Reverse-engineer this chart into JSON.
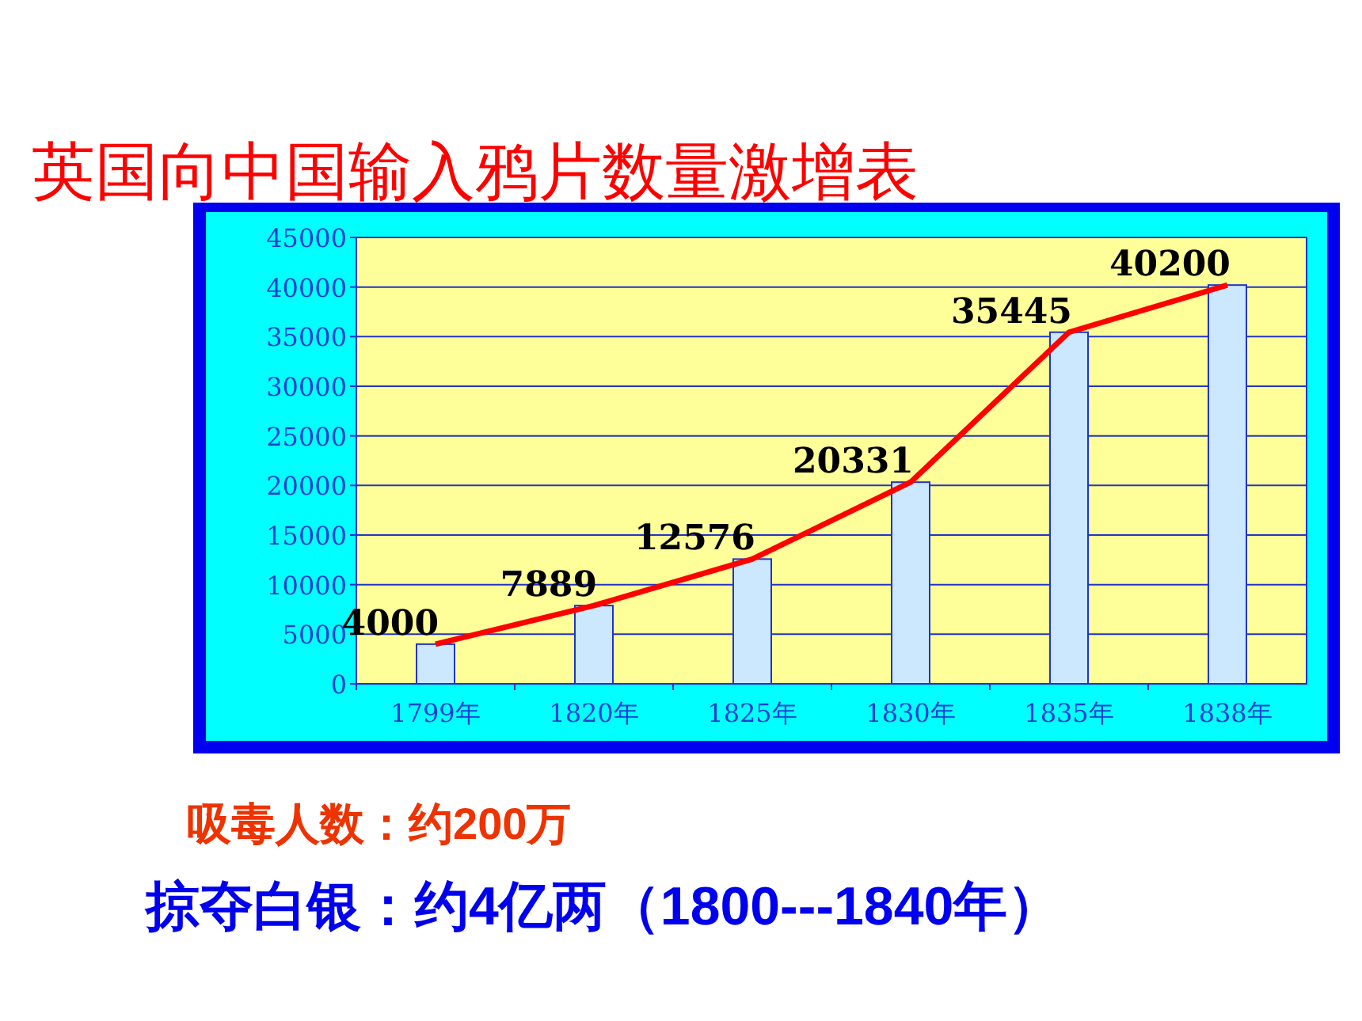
{
  "chart_data": {
    "type": "bar",
    "title": "英国向中国输入鸦片数量激增表",
    "categories": [
      "1799年",
      "1820年",
      "1825年",
      "1830年",
      "1835年",
      "1838年"
    ],
    "series": [
      {
        "color": "#cce8ff",
        "values": [
          4000,
          7889,
          12576,
          20331,
          35445,
          40200
        ]
      },
      {
        "type": "line",
        "color": "#ff0000",
        "values": [
          4000,
          7889,
          12576,
          20331,
          35445,
          40200
        ],
        "value_labels": [
          "4000",
          "7889",
          "12576",
          "20331",
          "35445",
          "40200"
        ]
      }
    ],
    "ylim": [
      0,
      45000
    ],
    "yticks": [
      0,
      5000,
      10000,
      15000,
      20000,
      25000,
      30000,
      35000,
      40000,
      45000
    ],
    "grid": "y",
    "annotations": [
      "吸毒人数：约200万",
      "掠夺白银：约4亿两（1800---1840年）"
    ]
  }
}
